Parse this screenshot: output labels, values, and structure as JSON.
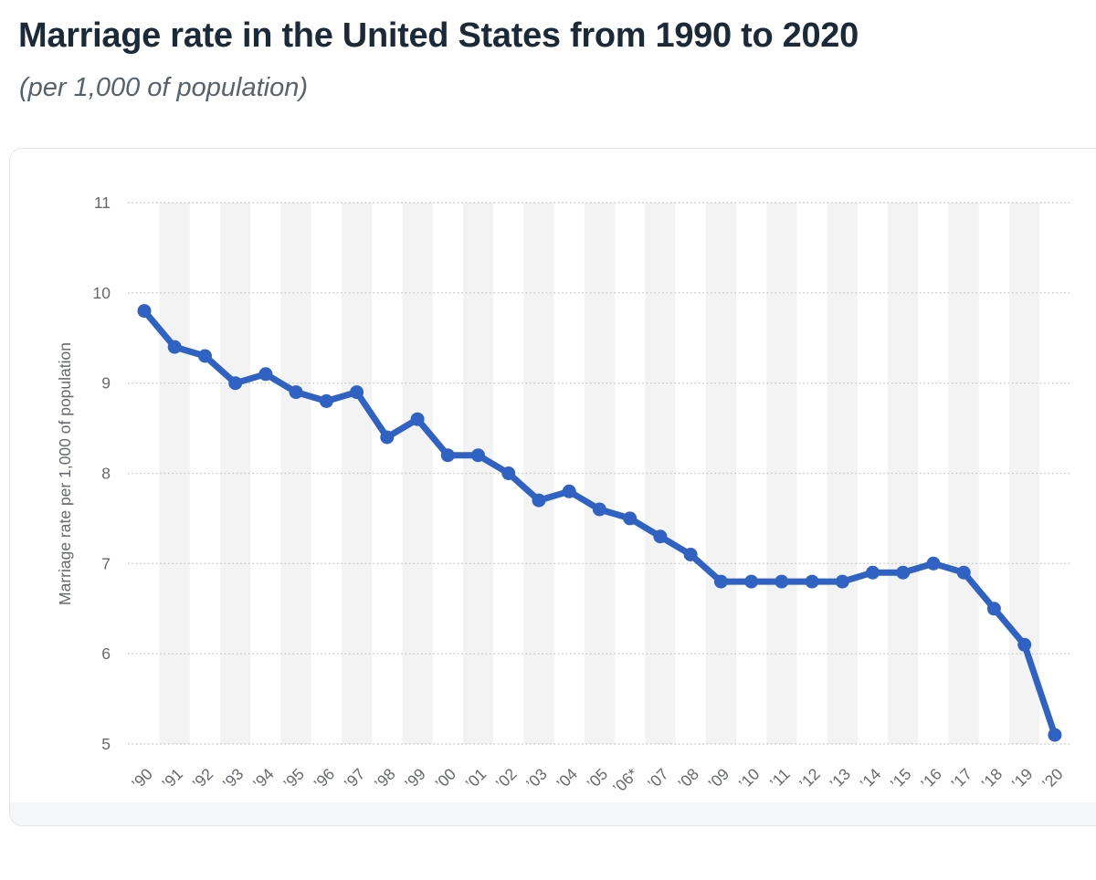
{
  "header": {
    "title": "Marriage rate in the United States from 1990 to 2020",
    "subtitle": "(per 1,000 of population)"
  },
  "chart_data": {
    "type": "line",
    "title": "Marriage rate in the United States from 1990 to 2020",
    "subtitle": "(per 1,000 of population)",
    "xlabel": "",
    "ylabel": "Marriage rate per 1,000 of population",
    "ylim": [
      5,
      11
    ],
    "yticks": [
      11,
      10,
      9,
      8,
      7,
      6,
      5
    ],
    "grid": "horizontal-dotted",
    "legend": "none",
    "plot_background": "alternating-vertical-bands",
    "categories": [
      "’90",
      "’91",
      "’92",
      "’93",
      "’94",
      "’95",
      "’96",
      "’97",
      "’98",
      "’99",
      "’00",
      "’01",
      "’02",
      "’03",
      "’04",
      "’05",
      "’06*",
      "’07",
      "’08",
      "’09",
      "’10",
      "’11",
      "’12",
      "’13",
      "’14",
      "’15",
      "’16",
      "’17",
      "’18",
      "’19",
      "’20"
    ],
    "series": [
      {
        "name": "Marriage rate per 1,000 of population",
        "values": [
          9.8,
          9.4,
          9.3,
          9.0,
          9.1,
          8.9,
          8.8,
          8.9,
          8.4,
          8.6,
          8.2,
          8.2,
          8.0,
          7.7,
          7.8,
          7.6,
          7.5,
          7.3,
          7.1,
          6.8,
          6.8,
          6.8,
          6.8,
          6.8,
          6.9,
          6.9,
          7.0,
          6.9,
          6.5,
          6.1,
          5.1
        ]
      }
    ]
  },
  "colors": {
    "line": "#2f62c2",
    "marker": "#2f62c2",
    "title_text": "#1c2a38",
    "subtitle_text": "#57626d",
    "tick_text": "#65696e",
    "gridline": "#c7c9cb",
    "band": "#f3f3f4",
    "card_border": "#e3e5e7",
    "card_footer": "#f5f6f7"
  }
}
